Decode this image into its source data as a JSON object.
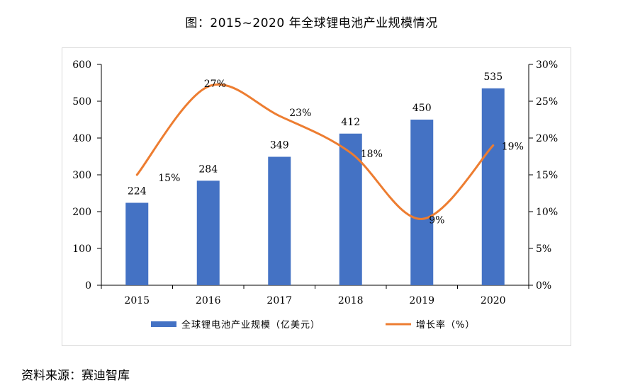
{
  "title": "图：2015~2020 年全球锂电池产业规模情况",
  "source": "资料来源：赛迪智库",
  "colors": {
    "bar": "#4472c4",
    "line": "#ed7d31",
    "axis": "#000000",
    "frame": "#d9d9d9"
  },
  "chart_data": {
    "type": "bar",
    "title": "图：2015~2020 年全球锂电池产业规模情况",
    "categories": [
      "2015",
      "2016",
      "2017",
      "2018",
      "2019",
      "2020"
    ],
    "series": [
      {
        "name": "全球锂电池产业规模（亿美元）",
        "type": "bar",
        "axis": "left",
        "values": [
          224,
          284,
          349,
          412,
          450,
          535
        ],
        "labels": [
          "224",
          "284",
          "349",
          "412",
          "450",
          "535"
        ]
      },
      {
        "name": "增长率（%）",
        "type": "line",
        "axis": "right",
        "smooth": true,
        "values": [
          15,
          27,
          23,
          18,
          9,
          19
        ],
        "labels": [
          "15%",
          "27%",
          "23%",
          "18%",
          "9%",
          "19%"
        ]
      }
    ],
    "ylim_left": [
      0,
      600
    ],
    "yticks_left": [
      0,
      100,
      200,
      300,
      400,
      500,
      600
    ],
    "yticklabels_left": [
      "0",
      "100",
      "200",
      "300",
      "400",
      "500",
      "600"
    ],
    "ylim_right": [
      0,
      30
    ],
    "yticks_right": [
      0,
      5,
      10,
      15,
      20,
      25,
      30
    ],
    "yticklabels_right": [
      "0%",
      "5%",
      "10%",
      "15%",
      "20%",
      "25%",
      "30%"
    ],
    "xlabel": "",
    "ylabel": "",
    "grid": false,
    "legend_position": "bottom"
  }
}
